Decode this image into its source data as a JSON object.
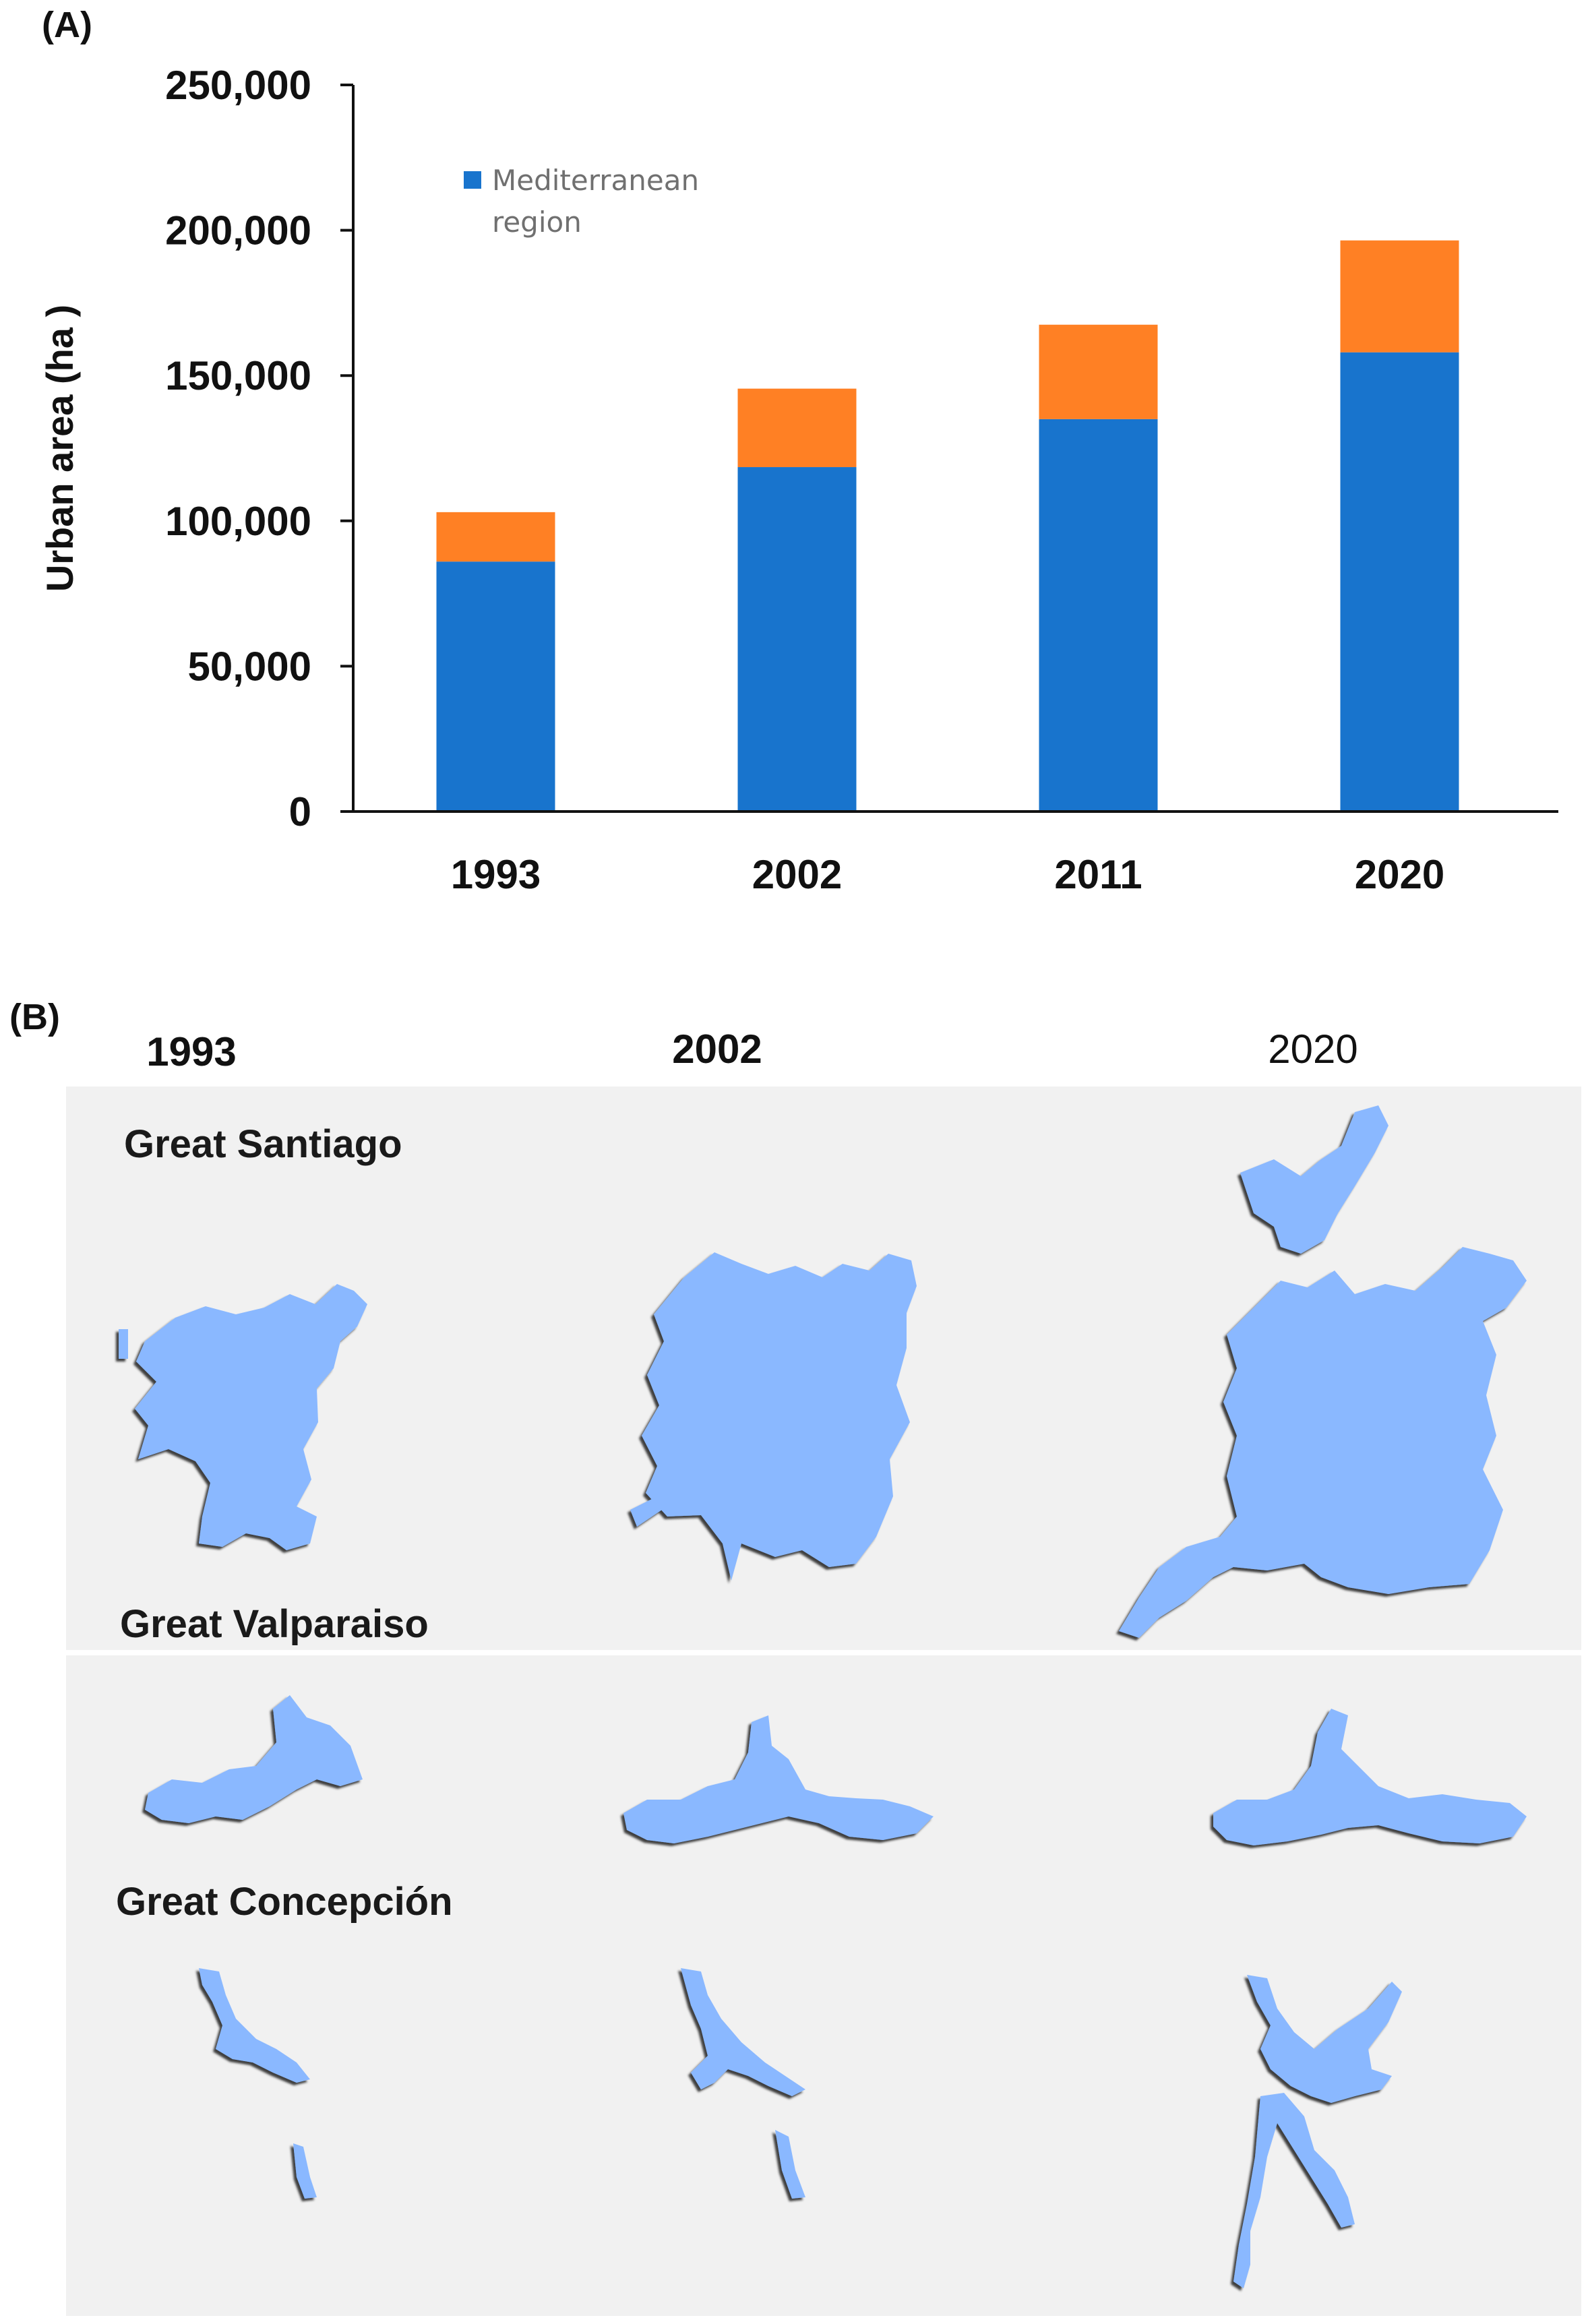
{
  "panel_a_label": "(A)",
  "panel_b_label": "(B)",
  "chart_data": {
    "type": "bar",
    "stacked": true,
    "categories": [
      "1993",
      "2002",
      "2011",
      "2020"
    ],
    "series": [
      {
        "name": "Mediterranean region",
        "values": [
          86000,
          118500,
          135000,
          158000
        ],
        "color": "#1874cd"
      },
      {
        "name": "",
        "values": [
          17000,
          27000,
          32500,
          38500
        ],
        "color": "#ff8024"
      }
    ],
    "ylabel": "Urban area (ha )",
    "xlabel": "",
    "ylim": [
      0,
      250000
    ],
    "yticks": [
      0,
      50000,
      100000,
      150000,
      200000,
      250000
    ],
    "ytick_labels": [
      "0",
      "50,000",
      "100,000",
      "150,000",
      "200,000",
      "250,000"
    ],
    "legend": {
      "text_line1": "Mediterranean",
      "text_line2": "region",
      "position": "top-left"
    },
    "grid": false
  },
  "maps": {
    "years": [
      "1993",
      "2002",
      "2020"
    ],
    "cities": [
      "Great Santiago",
      "Great Valparaiso",
      "Great Concepción"
    ],
    "fill_color": "#8ab8ff",
    "background": "#f1f1f1"
  }
}
